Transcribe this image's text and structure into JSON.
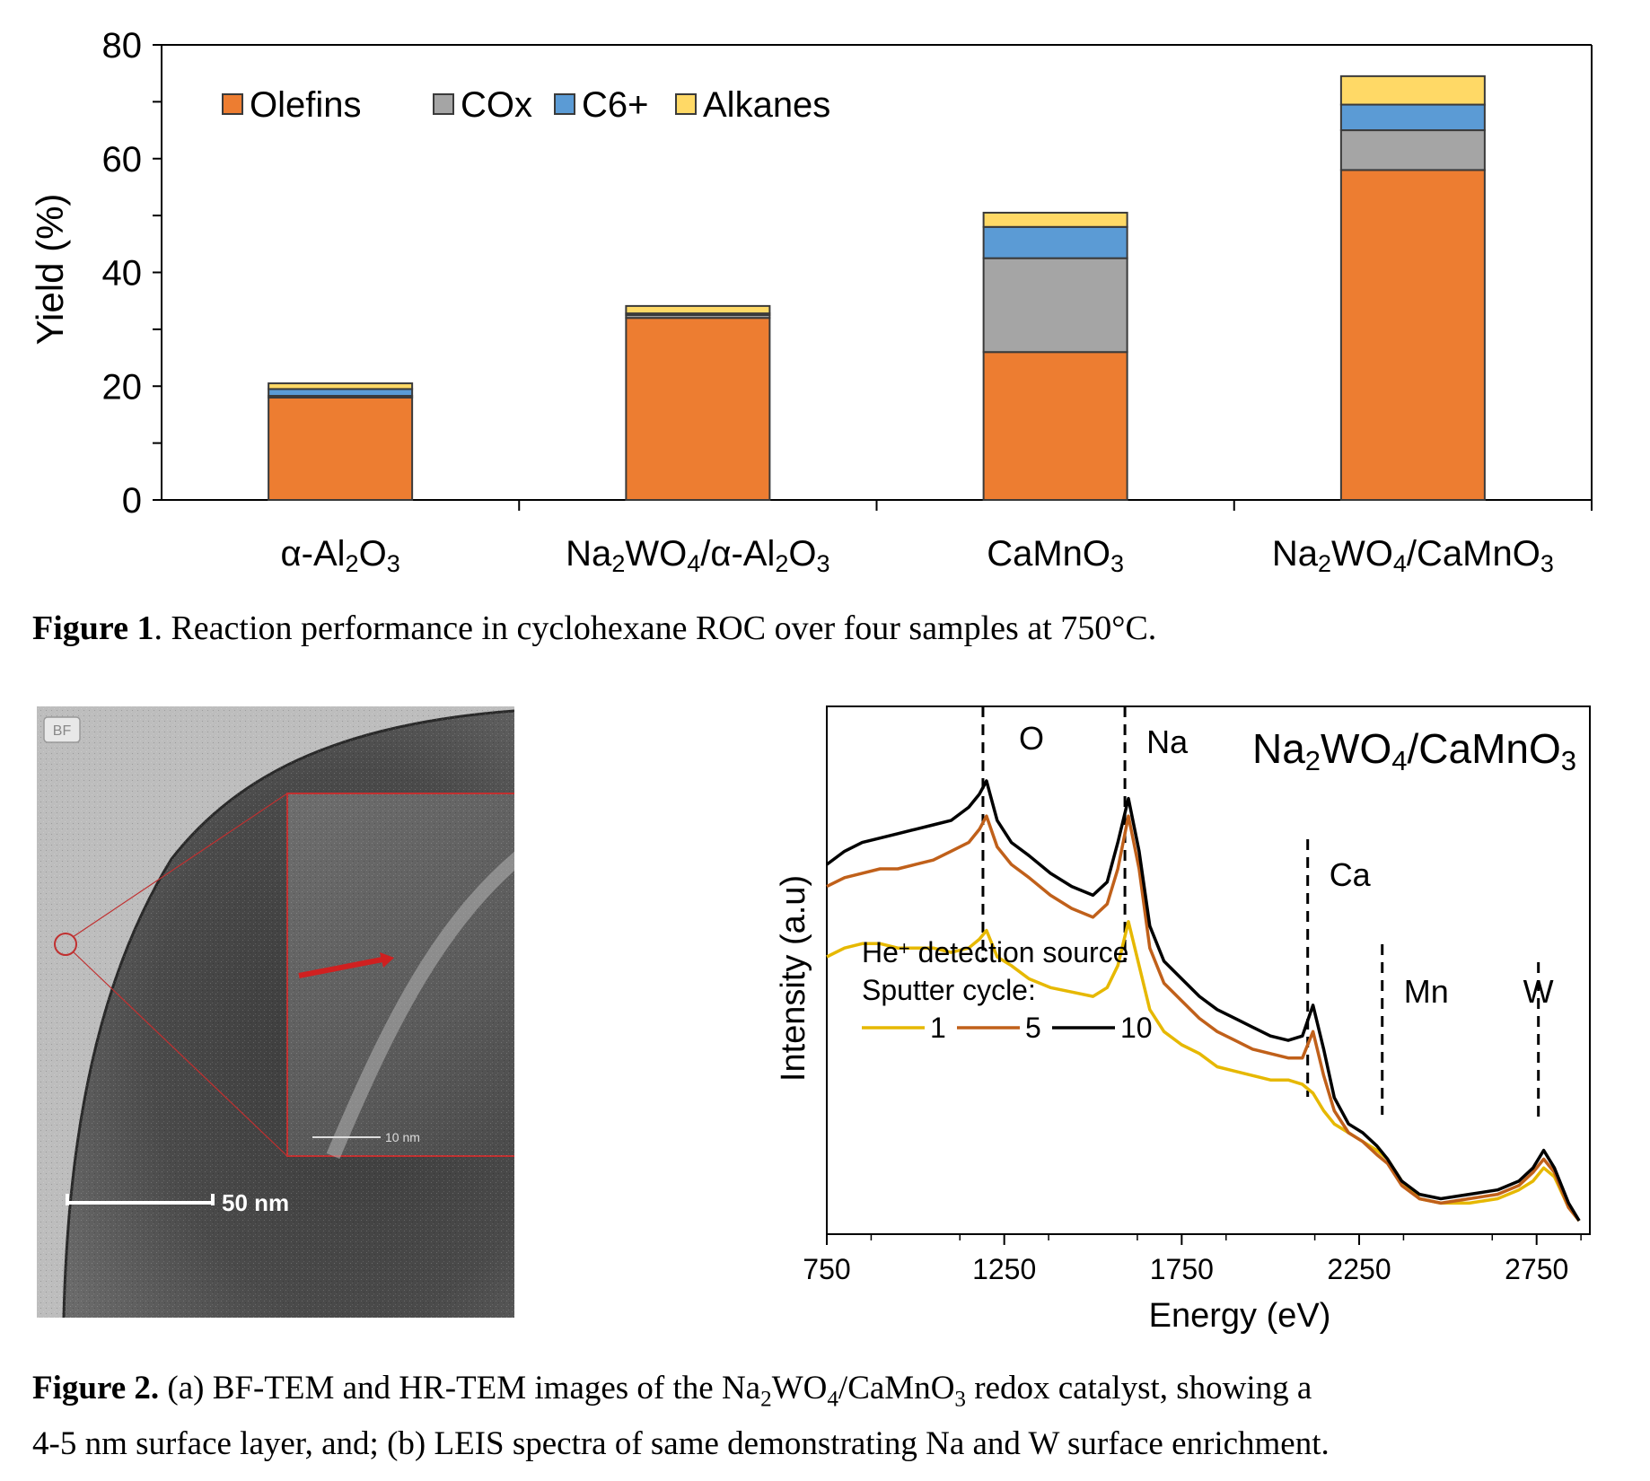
{
  "figure1": {
    "caption_label": "Figure 1",
    "caption_text": ". Reaction performance in cyclohexane ROC over four samples at 750°C.",
    "chart_data": {
      "type": "bar",
      "stacked": true,
      "ylabel": "Yield (%)",
      "xlabel": "",
      "ylim": [
        0,
        80
      ],
      "yticks": [
        0,
        20,
        40,
        60,
        80
      ],
      "grid": false,
      "legend_position": "top-left",
      "categories": [
        {
          "parts": [
            [
              "α-Al",
              "n"
            ],
            [
              "2",
              "sub"
            ],
            [
              "O",
              "n"
            ],
            [
              "3",
              "sub"
            ]
          ]
        },
        {
          "parts": [
            [
              "Na",
              "n"
            ],
            [
              "2",
              "sub"
            ],
            [
              "WO",
              "n"
            ],
            [
              "4",
              "sub"
            ],
            [
              "/α-Al",
              "n"
            ],
            [
              "2",
              "sub"
            ],
            [
              "O",
              "n"
            ],
            [
              "3",
              "sub"
            ]
          ]
        },
        {
          "parts": [
            [
              "CaMnO",
              "n"
            ],
            [
              "3",
              "sub"
            ]
          ]
        },
        {
          "parts": [
            [
              "Na",
              "n"
            ],
            [
              "2",
              "sub"
            ],
            [
              "WO",
              "n"
            ],
            [
              "4",
              "sub"
            ],
            [
              "/CaMnO",
              "n"
            ],
            [
              "3",
              "sub"
            ]
          ]
        }
      ],
      "series": [
        {
          "name": "Olefins",
          "color": "#ED7D31",
          "values": [
            18,
            32,
            26,
            58
          ]
        },
        {
          "name": "COx",
          "color": "#A5A5A5",
          "values": [
            0.3,
            0.5,
            16.5,
            7
          ]
        },
        {
          "name": "C6+",
          "color": "#5B9BD5",
          "values": [
            1.2,
            0.3,
            5.5,
            4.5
          ]
        },
        {
          "name": "Alkanes",
          "color": "#FFD966",
          "values": [
            1,
            1.3,
            2.5,
            5
          ]
        }
      ]
    }
  },
  "figure2": {
    "caption_label": "Figure 2.",
    "caption_line1_parts": [
      [
        "(a) BF-TEM and HR-TEM images of the Na",
        "n"
      ],
      [
        "2",
        "sub"
      ],
      [
        "WO",
        "n"
      ],
      [
        "4",
        "sub"
      ],
      [
        "/CaMnO",
        "n"
      ],
      [
        "3",
        "sub"
      ],
      [
        " redox catalyst, showing a",
        "n"
      ]
    ],
    "caption_line2": "4-5 nm surface layer, and; (b) LEIS spectra of same demonstrating Na and W surface enrichment.",
    "tem": {
      "bf_badge": "BF",
      "scalebar_main": "50 nm",
      "scalebar_inset": "10 nm"
    },
    "leis_chart": {
      "type": "line",
      "title_parts": [
        [
          "Na",
          "n"
        ],
        [
          "2",
          "sub"
        ],
        [
          "WO",
          "n"
        ],
        [
          "4",
          "sub"
        ],
        [
          "/CaMnO",
          "n"
        ],
        [
          "3",
          "sub"
        ]
      ],
      "xlabel": "Energy (eV)",
      "ylabel": "Intensity (a.u)",
      "xlim": [
        750,
        2900
      ],
      "xticks": [
        750,
        1250,
        1750,
        2250,
        2750
      ],
      "grid": false,
      "peak_markers": [
        {
          "label": "O",
          "x": 1190
        },
        {
          "label": "Na",
          "x": 1590
        },
        {
          "label": "Ca",
          "x": 2105
        },
        {
          "label": "Mn",
          "x": 2315
        },
        {
          "label": "W",
          "x": 2755
        }
      ],
      "legend_lines": [
        {
          "parts": [
            [
              "He",
              "n"
            ],
            [
              "+",
              "sup"
            ],
            [
              " detection source",
              "n"
            ]
          ]
        },
        {
          "parts": [
            [
              "Sputter cycle:",
              "n"
            ]
          ]
        }
      ],
      "series": [
        {
          "name": "1",
          "color": "#E6B800",
          "x": [
            750,
            800,
            850,
            900,
            950,
            1000,
            1050,
            1100,
            1150,
            1180,
            1200,
            1230,
            1270,
            1320,
            1380,
            1440,
            1500,
            1540,
            1570,
            1600,
            1630,
            1660,
            1700,
            1750,
            1800,
            1850,
            1900,
            1950,
            2000,
            2050,
            2090,
            2120,
            2150,
            2180,
            2220,
            2260,
            2300,
            2330,
            2370,
            2420,
            2480,
            2560,
            2640,
            2700,
            2740,
            2770,
            2800,
            2840,
            2870
          ],
          "y": [
            0.6,
            0.62,
            0.63,
            0.63,
            0.62,
            0.62,
            0.62,
            0.61,
            0.62,
            0.64,
            0.66,
            0.6,
            0.58,
            0.55,
            0.53,
            0.52,
            0.51,
            0.53,
            0.58,
            0.68,
            0.58,
            0.48,
            0.43,
            0.4,
            0.38,
            0.35,
            0.34,
            0.33,
            0.32,
            0.32,
            0.31,
            0.29,
            0.25,
            0.22,
            0.2,
            0.18,
            0.16,
            0.14,
            0.09,
            0.05,
            0.04,
            0.04,
            0.05,
            0.07,
            0.09,
            0.12,
            0.1,
            0.03,
            0.0
          ]
        },
        {
          "name": "5",
          "color": "#C0601A",
          "x": [
            750,
            800,
            850,
            900,
            950,
            1000,
            1050,
            1100,
            1150,
            1180,
            1200,
            1230,
            1270,
            1320,
            1380,
            1440,
            1500,
            1540,
            1570,
            1600,
            1630,
            1660,
            1700,
            1750,
            1800,
            1850,
            1900,
            1950,
            2000,
            2050,
            2090,
            2120,
            2150,
            2180,
            2220,
            2260,
            2300,
            2330,
            2370,
            2420,
            2480,
            2560,
            2640,
            2700,
            2740,
            2770,
            2800,
            2840,
            2870
          ],
          "y": [
            0.76,
            0.78,
            0.79,
            0.8,
            0.8,
            0.81,
            0.82,
            0.84,
            0.86,
            0.89,
            0.92,
            0.85,
            0.81,
            0.78,
            0.74,
            0.71,
            0.69,
            0.72,
            0.8,
            0.92,
            0.8,
            0.62,
            0.54,
            0.5,
            0.46,
            0.43,
            0.41,
            0.39,
            0.38,
            0.37,
            0.37,
            0.43,
            0.33,
            0.25,
            0.2,
            0.18,
            0.15,
            0.13,
            0.08,
            0.05,
            0.04,
            0.05,
            0.06,
            0.08,
            0.11,
            0.14,
            0.11,
            0.03,
            0.0
          ]
        },
        {
          "name": "10",
          "color": "#000000",
          "x": [
            750,
            800,
            850,
            900,
            950,
            1000,
            1050,
            1100,
            1150,
            1180,
            1200,
            1230,
            1270,
            1320,
            1380,
            1440,
            1500,
            1540,
            1570,
            1600,
            1630,
            1660,
            1700,
            1750,
            1800,
            1850,
            1900,
            1950,
            2000,
            2050,
            2090,
            2120,
            2150,
            2180,
            2220,
            2260,
            2300,
            2330,
            2370,
            2420,
            2480,
            2560,
            2640,
            2700,
            2740,
            2770,
            2800,
            2840,
            2870
          ],
          "y": [
            0.81,
            0.84,
            0.86,
            0.87,
            0.88,
            0.89,
            0.9,
            0.91,
            0.94,
            0.97,
            1.0,
            0.91,
            0.86,
            0.83,
            0.79,
            0.76,
            0.74,
            0.77,
            0.86,
            0.96,
            0.84,
            0.67,
            0.59,
            0.55,
            0.51,
            0.48,
            0.46,
            0.44,
            0.42,
            0.41,
            0.42,
            0.49,
            0.39,
            0.28,
            0.22,
            0.2,
            0.17,
            0.14,
            0.09,
            0.06,
            0.05,
            0.06,
            0.07,
            0.09,
            0.12,
            0.16,
            0.12,
            0.04,
            0.0
          ]
        }
      ]
    }
  }
}
